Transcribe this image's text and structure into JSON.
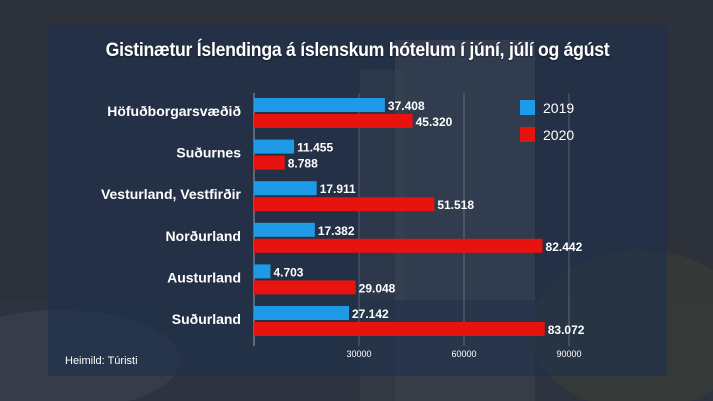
{
  "chart_data": {
    "type": "bar",
    "orientation": "horizontal",
    "title": "Gistinætur Íslendinga á íslenskum hótelum í júní, júlí og ágúst",
    "categories": [
      "Höfuðborgarsvæðið",
      "Suðurnes",
      "Vesturland, Vestfirðir",
      "Norðurland",
      "Austurland",
      "Suðurland"
    ],
    "series": [
      {
        "name": "2019",
        "color": "#1e9ae6",
        "values": [
          37408,
          11455,
          17911,
          17382,
          4703,
          27142
        ],
        "value_labels": [
          "37.408",
          "11.455",
          "17.911",
          "17.382",
          "4.703",
          "27.142"
        ]
      },
      {
        "name": "2020",
        "color": "#e8120e",
        "values": [
          45320,
          8788,
          51518,
          82442,
          29048,
          83072
        ],
        "value_labels": [
          "45.320",
          "8.788",
          "51.518",
          "82.442",
          "29.048",
          "83.072"
        ]
      }
    ],
    "xlim": [
      0,
      100000
    ],
    "xticks": [
      30000,
      60000,
      90000
    ],
    "xtick_labels": [
      "30000",
      "60000",
      "90000"
    ],
    "grid": true,
    "legend_placement": "top-right"
  },
  "source": "Heimild: Túristi"
}
